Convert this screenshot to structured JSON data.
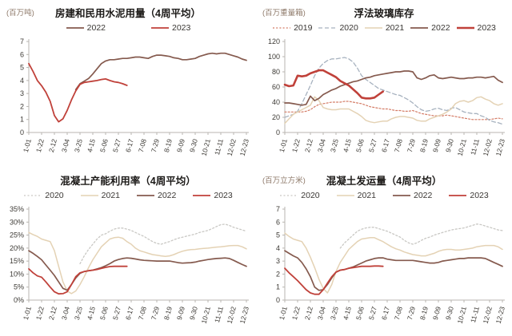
{
  "page": {
    "background": "#ffffff"
  },
  "axis": {
    "line_color": "#b8b5b0",
    "tick_text_color": "#3d3a35",
    "x_tick_labels": [
      "1-01",
      "1-22",
      "2-12",
      "3-04",
      "3-25",
      "4-15",
      "5-06",
      "5-27",
      "6-17",
      "7-08",
      "7-29",
      "8-19",
      "9-09",
      "9-30",
      "10-21",
      "11-11",
      "12-02",
      "12-23"
    ],
    "label_every_n_weeks": 3,
    "points_per_series": 52
  },
  "palette": {
    "y2023": "#c0413a",
    "y2022": "#855a4e",
    "y2021": "#e4d2b4",
    "y2020_dash_gray_blue": "#a7b2bf",
    "y2020_dot_gray": "#c9c8c4",
    "y2019_dot_red": "#d47c66"
  },
  "chart_data": [
    {
      "type": "line",
      "title": "房建和民用水泥用量（4周平均）",
      "unit_label": "(百万吨)",
      "ylim": [
        0,
        7
      ],
      "ytick_step": 1,
      "ytick_suffix": "",
      "legend_gap": 56,
      "series": [
        {
          "name": "2022",
          "color": "#855a4e",
          "width": 1.7,
          "dash": null,
          "values": [
            null,
            null,
            null,
            null,
            null,
            null,
            null,
            null,
            null,
            null,
            null,
            3.3,
            3.75,
            3.95,
            4.15,
            4.5,
            4.9,
            5.3,
            5.5,
            5.6,
            5.6,
            5.65,
            5.7,
            5.7,
            5.75,
            5.8,
            5.8,
            5.75,
            5.7,
            5.85,
            5.95,
            5.95,
            5.9,
            5.85,
            5.75,
            5.7,
            5.6,
            5.6,
            5.65,
            5.7,
            5.85,
            5.95,
            6.05,
            6.1,
            6.05,
            6.1,
            6.1,
            6.0,
            5.9,
            5.8,
            5.65,
            5.55
          ]
        },
        {
          "name": "2023",
          "color": "#c0413a",
          "width": 1.8,
          "dash": null,
          "values": [
            5.3,
            4.7,
            4.0,
            3.6,
            3.1,
            2.4,
            1.3,
            0.82,
            1.05,
            1.7,
            2.5,
            3.2,
            3.7,
            3.85,
            3.9,
            3.95,
            4.0,
            4.08,
            4.12,
            4.0,
            3.9,
            3.85,
            3.75,
            3.62,
            null,
            null,
            null,
            null,
            null,
            null,
            null,
            null,
            null,
            null,
            null,
            null,
            null,
            null,
            null,
            null,
            null,
            null,
            null,
            null,
            null,
            null,
            null,
            null,
            null,
            null,
            null,
            null
          ]
        }
      ]
    },
    {
      "type": "line",
      "title": "浮法玻璃库存",
      "unit_label": "(百万重量箱)",
      "ylim": [
        0,
        120
      ],
      "ytick_step": 20,
      "ytick_suffix": "",
      "legend_gap": 7,
      "series": [
        {
          "name": "2019",
          "color": "#d47c66",
          "width": 1.2,
          "dash": "2,2.2",
          "values": [
            27,
            27,
            27,
            27,
            27,
            28,
            30,
            34,
            37,
            38,
            39,
            40,
            40,
            40,
            41,
            41,
            40,
            39,
            38,
            36,
            34,
            33,
            32,
            31,
            31,
            30,
            29,
            29,
            28,
            28,
            29,
            27,
            25,
            24,
            23,
            22,
            22,
            22,
            23,
            22,
            21,
            20,
            19,
            18,
            17,
            17,
            17,
            17,
            17,
            18,
            19,
            18
          ]
        },
        {
          "name": "2020",
          "color": "#a7b2bf",
          "width": 1.3,
          "dash": "5,3",
          "values": [
            20,
            22,
            24,
            28,
            38,
            50,
            62,
            75,
            85,
            91,
            95,
            97,
            97,
            98,
            99,
            97,
            93,
            85,
            75,
            70,
            66,
            62,
            58,
            56,
            54,
            52,
            50,
            49,
            46,
            43,
            39,
            34,
            30,
            28,
            29,
            31,
            32,
            30,
            29,
            32,
            33,
            30,
            27,
            26,
            25,
            25,
            22,
            20,
            16,
            14,
            13,
            11
          ]
        },
        {
          "name": "2021",
          "color": "#e4d2b4",
          "width": 1.5,
          "dash": null,
          "values": [
            12,
            18,
            24,
            27,
            30,
            33,
            36,
            47,
            42,
            33,
            31,
            30,
            30,
            31,
            31,
            31,
            28,
            25,
            21,
            16,
            14,
            13,
            14,
            15,
            15,
            18,
            20,
            21,
            21,
            20,
            19,
            16,
            15,
            15,
            18,
            20,
            22,
            24,
            27,
            31,
            38,
            41,
            42,
            40,
            42,
            46,
            47,
            44,
            42,
            38,
            36,
            38
          ]
        },
        {
          "name": "2022",
          "color": "#855a4e",
          "width": 1.7,
          "dash": null,
          "values": [
            39,
            39,
            38,
            37,
            36,
            37,
            48,
            42,
            45,
            50,
            53,
            56,
            58,
            61,
            63,
            65,
            67,
            68,
            70,
            72,
            73,
            75,
            76,
            77,
            78,
            79,
            80,
            80,
            81,
            81,
            80,
            72,
            70,
            72,
            75,
            76,
            72,
            71,
            72,
            73,
            72,
            71,
            71,
            72,
            72,
            73,
            73,
            72,
            73,
            74,
            69,
            66
          ]
        },
        {
          "name": "2023",
          "color": "#c0413a",
          "width": 2.6,
          "dash": null,
          "values": [
            63,
            61,
            62,
            75,
            74,
            75,
            78,
            80,
            82,
            82,
            79,
            76,
            73,
            68,
            65,
            62,
            57,
            52,
            46,
            45,
            45,
            46,
            50,
            54,
            null,
            null,
            null,
            null,
            null,
            null,
            null,
            null,
            null,
            null,
            null,
            null,
            null,
            null,
            null,
            null,
            null,
            null,
            null,
            null,
            null,
            null,
            null,
            null,
            null,
            null,
            null,
            null
          ]
        }
      ]
    },
    {
      "type": "line",
      "title": "混凝土产能利用率（4周平均）",
      "unit_label": "",
      "ylim": [
        0,
        35
      ],
      "ytick_step": 5,
      "ytick_suffix": "%",
      "legend_gap": 20,
      "series": [
        {
          "name": "2020",
          "color": "#c9c8c4",
          "width": 1.3,
          "dash": "2,2.5",
          "values": [
            null,
            null,
            null,
            null,
            null,
            null,
            null,
            null,
            null,
            null,
            null,
            null,
            14,
            17,
            19.5,
            21.5,
            23.5,
            25,
            25.5,
            26.5,
            27.3,
            27.7,
            27.7,
            27.3,
            26.8,
            26,
            25.2,
            24.5,
            23.5,
            22.5,
            21.8,
            21.5,
            22,
            22.5,
            23.2,
            23.8,
            24.2,
            24.6,
            25,
            25.4,
            26,
            26.4,
            26.8,
            27.5,
            28.3,
            29,
            29.2,
            28.7,
            28,
            27.5,
            27,
            26.5
          ]
        },
        {
          "name": "2021",
          "color": "#e4d2b4",
          "width": 1.5,
          "dash": null,
          "values": [
            26,
            25.2,
            24.5,
            23.5,
            23,
            22.5,
            19,
            13,
            7,
            3.5,
            2.5,
            3.5,
            6,
            9,
            12.5,
            15.5,
            18,
            20.5,
            22,
            23.5,
            24,
            24.2,
            23.8,
            22.5,
            21.5,
            20,
            19,
            18.5,
            18,
            17.5,
            17.3,
            17,
            16.8,
            17,
            17.5,
            18.2,
            18.8,
            19.2,
            19.4,
            19.5,
            19.7,
            19.9,
            20,
            20.2,
            20.4,
            20.5,
            20.7,
            20.9,
            21,
            21,
            20.5,
            19.7
          ]
        },
        {
          "name": "2022",
          "color": "#855a4e",
          "width": 1.7,
          "dash": null,
          "values": [
            19,
            18,
            16.8,
            15.5,
            13.5,
            11.5,
            9.5,
            7,
            4.5,
            3.8,
            6,
            8.5,
            10.3,
            11,
            11.3,
            11.5,
            12,
            12.5,
            13.2,
            14,
            15,
            15.6,
            16,
            16.2,
            16.1,
            15.8,
            15.5,
            15.3,
            15.2,
            15.1,
            15,
            15,
            15,
            15,
            14.7,
            14.4,
            14.2,
            14.3,
            14.4,
            14.6,
            15,
            15.3,
            15.6,
            15.8,
            16,
            16.1,
            16.2,
            16,
            15.3,
            14.5,
            13.7,
            13
          ]
        },
        {
          "name": "2023",
          "color": "#c0413a",
          "width": 1.8,
          "dash": null,
          "values": [
            12,
            10.5,
            9.3,
            8.8,
            7,
            5,
            3.2,
            2.4,
            2.5,
            3.2,
            6,
            9,
            10.5,
            11,
            11.3,
            11.5,
            11.8,
            12.2,
            12.6,
            12.9,
            13,
            13,
            13,
            13,
            null,
            null,
            null,
            null,
            null,
            null,
            null,
            null,
            null,
            null,
            null,
            null,
            null,
            null,
            null,
            null,
            null,
            null,
            null,
            null,
            null,
            null,
            null,
            null,
            null,
            null,
            null,
            null
          ]
        }
      ]
    },
    {
      "type": "line",
      "title": "混凝土发运量（4周平均）",
      "unit_label": "(百万立方米)",
      "ylim": [
        0,
        7
      ],
      "ytick_step": 1,
      "ytick_suffix": "",
      "legend_gap": 20,
      "series": [
        {
          "name": "2020",
          "color": "#c9c8c4",
          "width": 1.3,
          "dash": "2,2.5",
          "values": [
            null,
            null,
            null,
            null,
            null,
            null,
            null,
            null,
            null,
            null,
            null,
            null,
            null,
            4.0,
            4.4,
            4.7,
            5.0,
            5.3,
            5.45,
            5.55,
            5.6,
            5.6,
            5.5,
            5.4,
            5.3,
            5.15,
            5.0,
            4.85,
            4.6,
            4.4,
            4.3,
            4.4,
            4.6,
            4.75,
            4.85,
            5.0,
            5.1,
            5.2,
            5.3,
            5.4,
            5.45,
            5.5,
            5.55,
            5.65,
            5.75,
            5.85,
            5.8,
            5.7,
            5.6,
            5.5,
            5.4,
            5.35
          ]
        },
        {
          "name": "2021",
          "color": "#e4d2b4",
          "width": 1.5,
          "dash": null,
          "values": [
            5.15,
            4.9,
            4.7,
            4.6,
            4.5,
            4.0,
            3.3,
            2.5,
            1.6,
            0.9,
            0.55,
            1.2,
            2.2,
            2.9,
            3.4,
            3.9,
            4.2,
            4.5,
            4.7,
            4.75,
            4.8,
            4.8,
            4.65,
            4.5,
            4.3,
            4.1,
            3.95,
            3.85,
            3.7,
            3.6,
            3.5,
            3.45,
            3.4,
            3.4,
            3.5,
            3.6,
            3.75,
            3.85,
            3.9,
            3.9,
            3.85,
            3.85,
            3.9,
            3.95,
            4.0,
            4.1,
            4.15,
            4.2,
            4.2,
            4.2,
            4.1,
            3.9
          ]
        },
        {
          "name": "2022",
          "color": "#855a4e",
          "width": 1.7,
          "dash": null,
          "values": [
            3.8,
            3.6,
            3.4,
            3.25,
            2.9,
            2.4,
            1.8,
            1.0,
            0.75,
            0.8,
            1.2,
            1.7,
            2.15,
            2.3,
            2.35,
            2.45,
            2.55,
            2.7,
            2.85,
            3.0,
            3.1,
            3.2,
            3.25,
            3.25,
            3.15,
            3.1,
            3.05,
            3.05,
            3.05,
            3.05,
            3.05,
            3.0,
            2.95,
            2.9,
            2.85,
            2.85,
            2.9,
            3.0,
            3.05,
            3.1,
            3.15,
            3.2,
            3.2,
            3.25,
            3.25,
            3.25,
            3.25,
            3.2,
            3.05,
            2.9,
            2.75,
            2.6
          ]
        },
        {
          "name": "2023",
          "color": "#c0413a",
          "width": 1.8,
          "dash": null,
          "values": [
            2.45,
            2.1,
            1.8,
            1.5,
            1.15,
            0.8,
            0.55,
            0.45,
            0.45,
            0.8,
            1.3,
            1.8,
            2.15,
            2.3,
            2.35,
            2.45,
            2.5,
            2.55,
            2.6,
            2.6,
            2.6,
            2.62,
            2.62,
            2.6,
            null,
            null,
            null,
            null,
            null,
            null,
            null,
            null,
            null,
            null,
            null,
            null,
            null,
            null,
            null,
            null,
            null,
            null,
            null,
            null,
            null,
            null,
            null,
            null,
            null,
            null,
            null,
            null
          ]
        }
      ]
    }
  ]
}
